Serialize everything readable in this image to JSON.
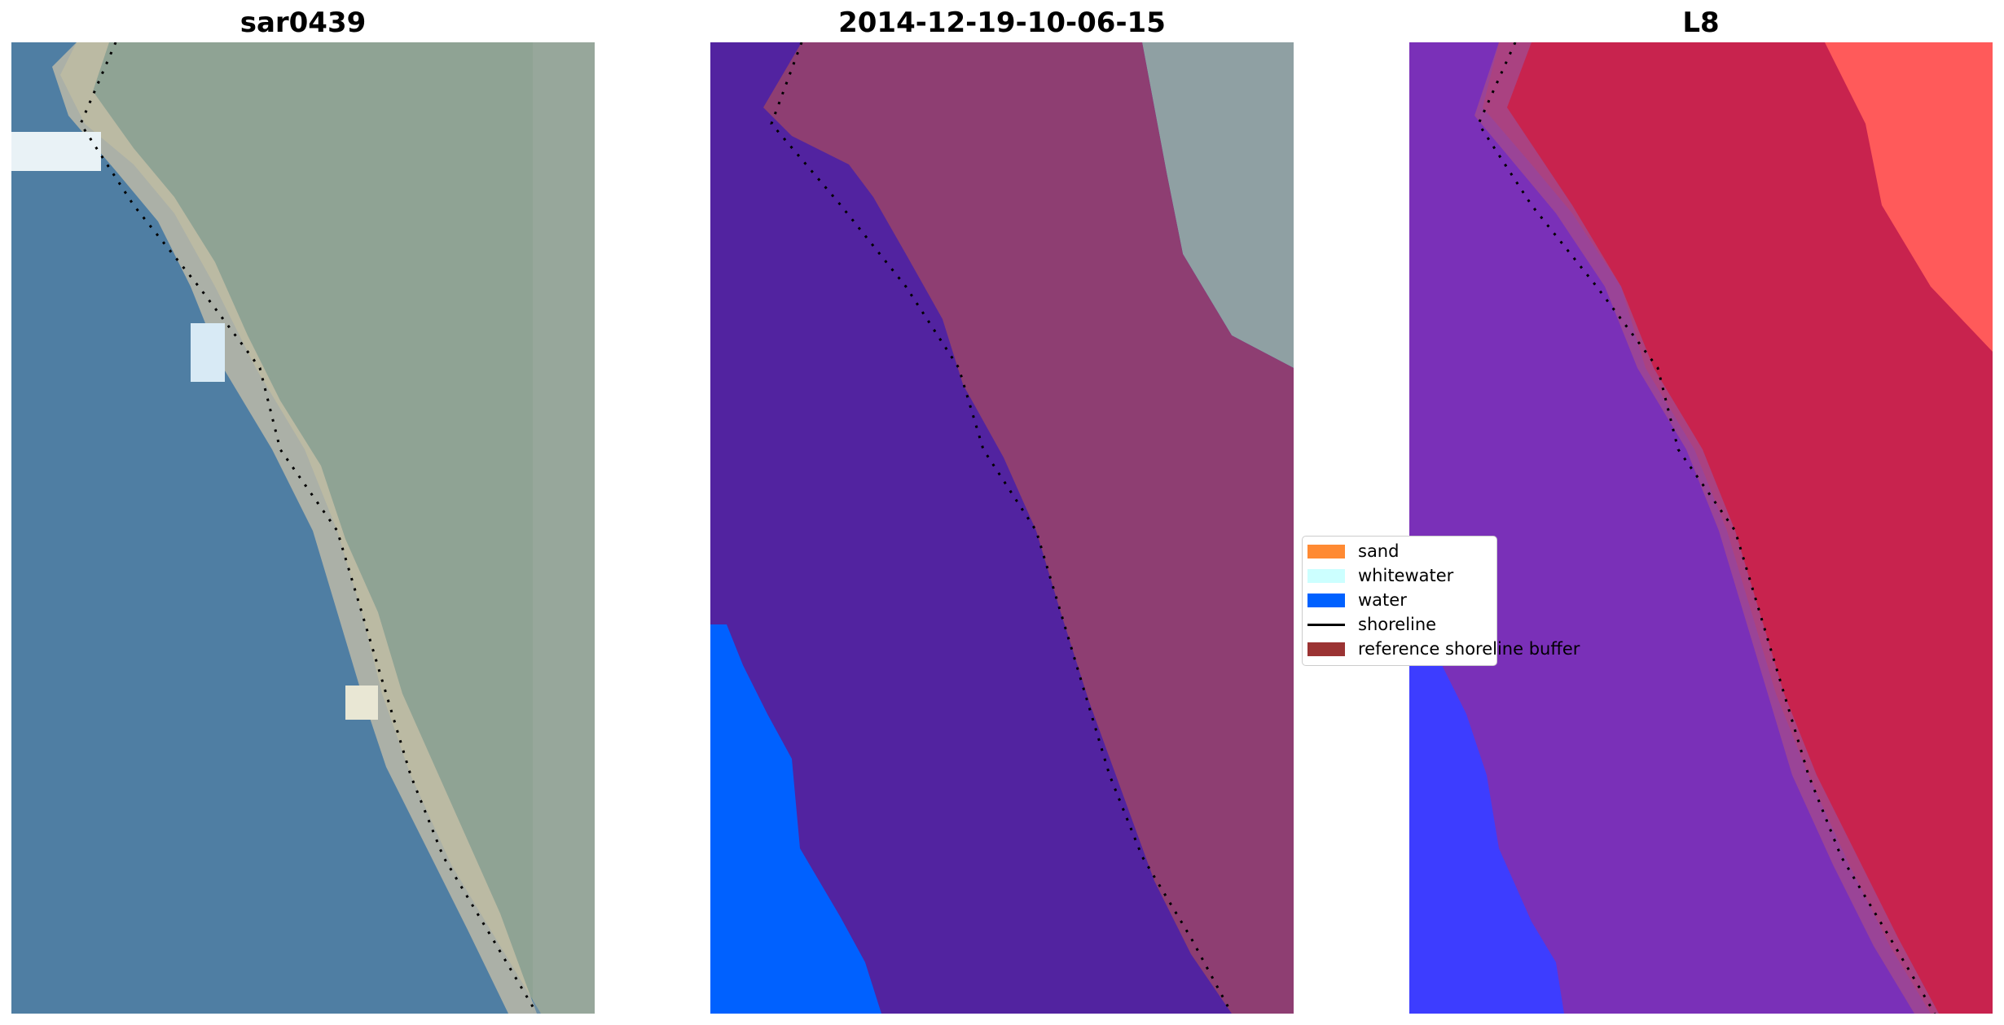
{
  "panels": [
    {
      "id": "rgb",
      "title": "sar0439"
    },
    {
      "id": "classified",
      "title": "2014-12-19-10-06-15"
    },
    {
      "id": "index",
      "title": "L8"
    }
  ],
  "legend": {
    "items": [
      {
        "label": "sand",
        "color": "#ff8a33",
        "kind": "patch"
      },
      {
        "label": "whitewater",
        "color": "#ccffff",
        "kind": "patch"
      },
      {
        "label": "water",
        "color": "#0061ff",
        "kind": "patch"
      },
      {
        "label": "shoreline",
        "color": "#000000",
        "kind": "line"
      },
      {
        "label": "reference shoreline buffer",
        "color": "#9b3333",
        "kind": "patch"
      }
    ]
  },
  "colors": {
    "water_rgb": "#4f7ea3",
    "land_rgb": "#8fa394",
    "sand_rgb": "#d9c8a8",
    "classified_water": "#5223a0",
    "classified_buffer": "#8e3e72",
    "classified_deep_water": "#0061ff",
    "classified_land": "#8fa0a3",
    "index_water": "#7a30b8",
    "index_land": "#c8234e",
    "index_blue": "#3d3dff",
    "index_bright": "#ff5a5a"
  }
}
